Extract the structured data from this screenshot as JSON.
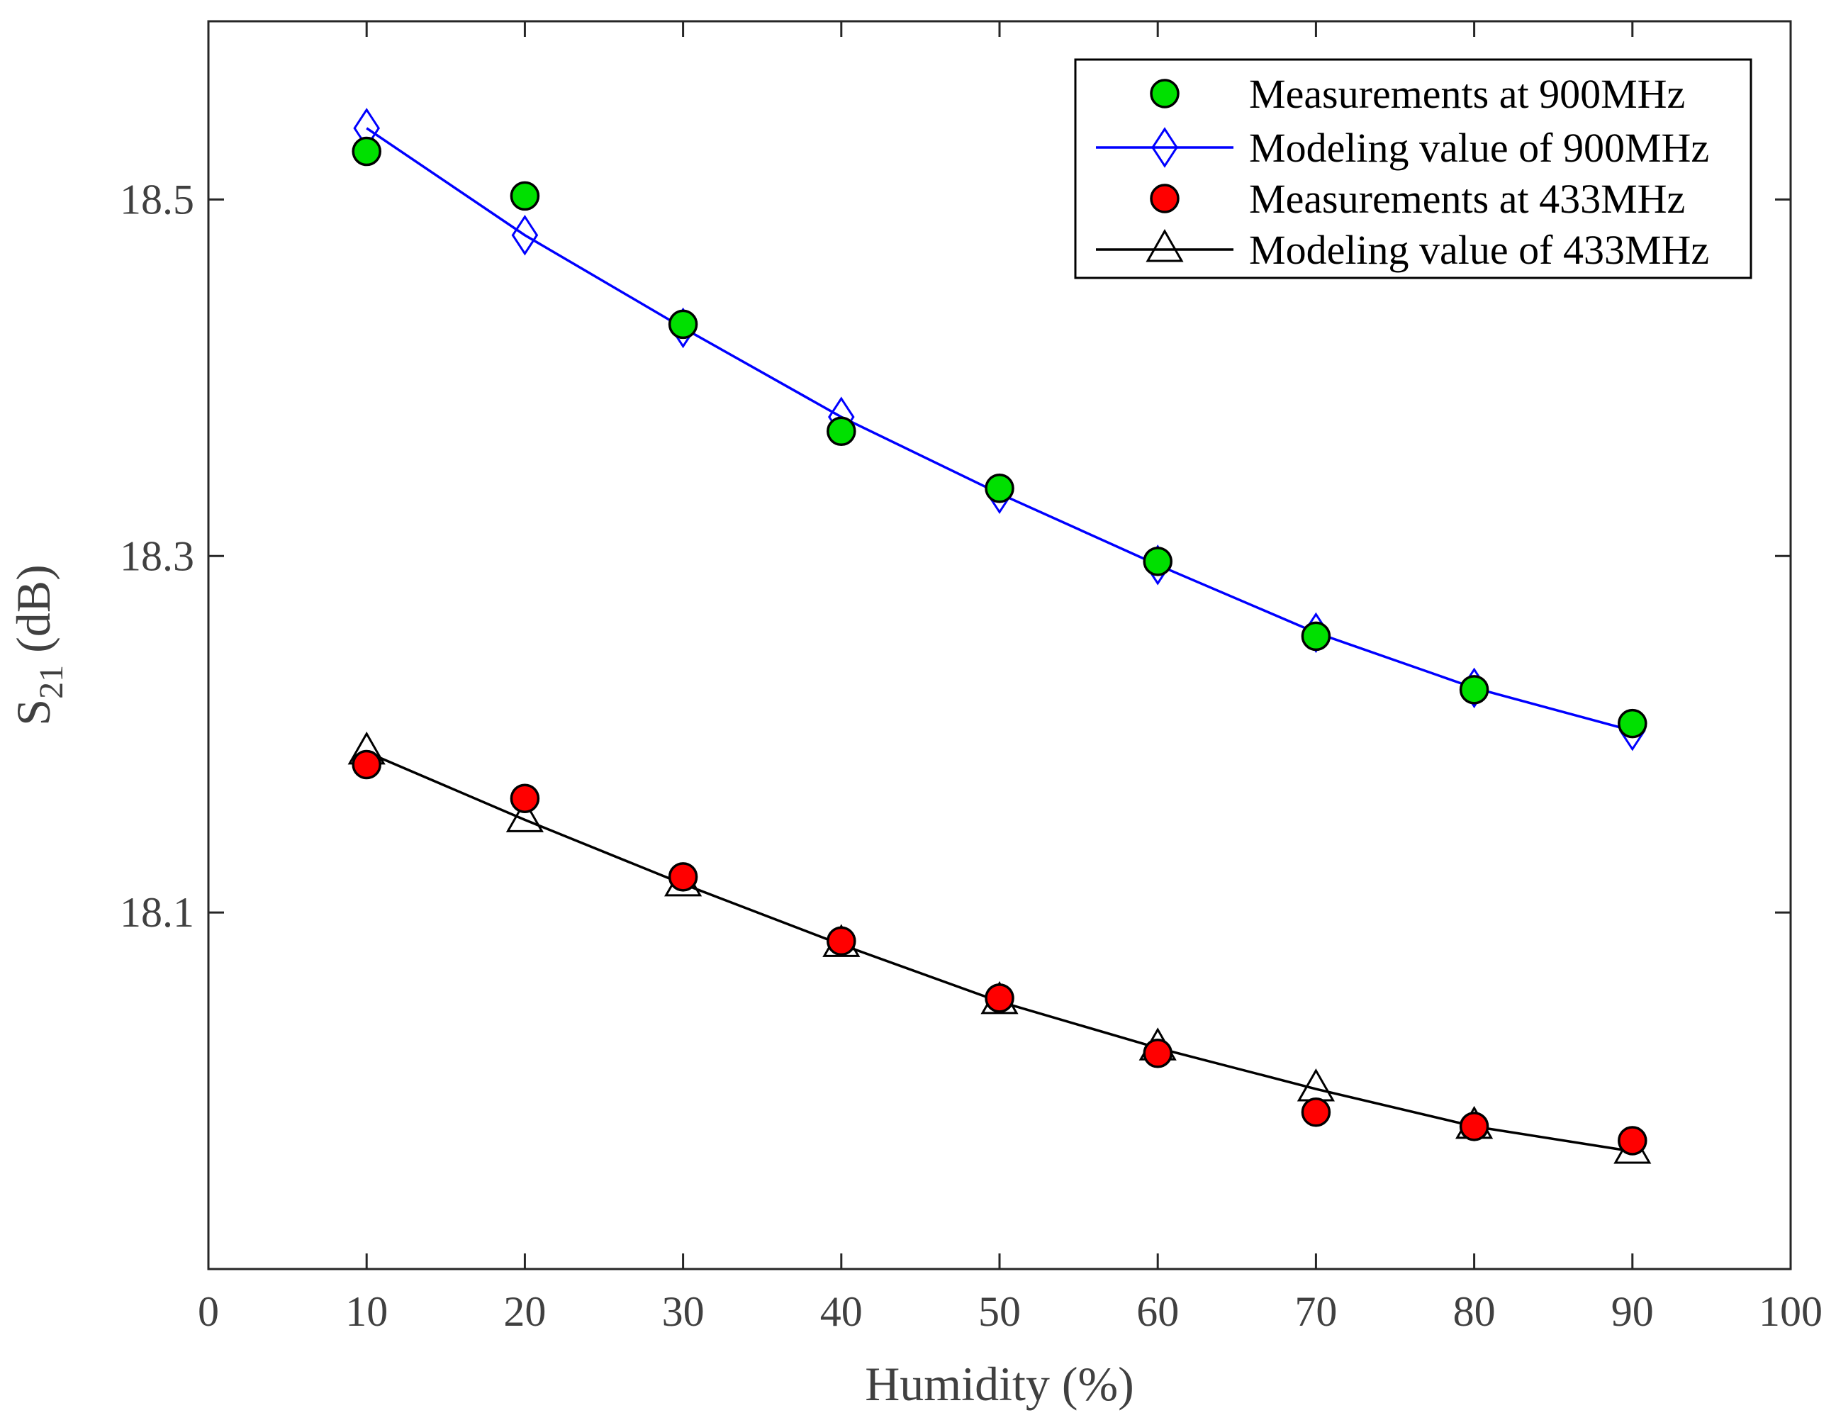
{
  "chart_data": {
    "type": "line",
    "title": "",
    "xlabel": "Humidity (%)",
    "ylabel_main": "S",
    "ylabel_sub": "21",
    "ylabel_unit": " (dB)",
    "xlim": [
      0,
      100
    ],
    "ylim": [
      17.9,
      18.6
    ],
    "xticks": [
      0,
      10,
      20,
      30,
      40,
      50,
      60,
      70,
      80,
      90,
      100
    ],
    "yticks": [
      18.1,
      18.3,
      18.5
    ],
    "ytick_labels": [
      "18.1",
      "18.3",
      "18.5"
    ],
    "grid": false,
    "legend_position": "top-right",
    "x": [
      10,
      20,
      30,
      40,
      50,
      60,
      70,
      80,
      90
    ],
    "series": [
      {
        "name": "Measurements at 900MHz",
        "kind": "markers",
        "marker": "circle",
        "color": "#00e000",
        "edge": "#000000",
        "values": [
          18.527,
          18.502,
          18.43,
          18.37,
          18.338,
          18.297,
          18.255,
          18.225,
          18.206
        ]
      },
      {
        "name": "Modeling value of 900MHz",
        "kind": "line-markers",
        "marker": "diamond",
        "color": "#0000ff",
        "values": [
          18.54,
          18.48,
          18.428,
          18.378,
          18.335,
          18.295,
          18.257,
          18.226,
          18.202
        ]
      },
      {
        "name": "Measurements at 433MHz",
        "kind": "markers",
        "marker": "circle",
        "color": "#ff0000",
        "edge": "#000000",
        "values": [
          18.183,
          18.164,
          18.12,
          18.084,
          18.052,
          18.021,
          17.988,
          17.98,
          17.972
        ]
      },
      {
        "name": "Modeling value of 433MHz",
        "kind": "line-markers",
        "marker": "triangle",
        "color": "#000000",
        "values": [
          18.19,
          18.152,
          18.116,
          18.082,
          18.05,
          18.024,
          18.001,
          17.98,
          17.966
        ]
      }
    ]
  }
}
